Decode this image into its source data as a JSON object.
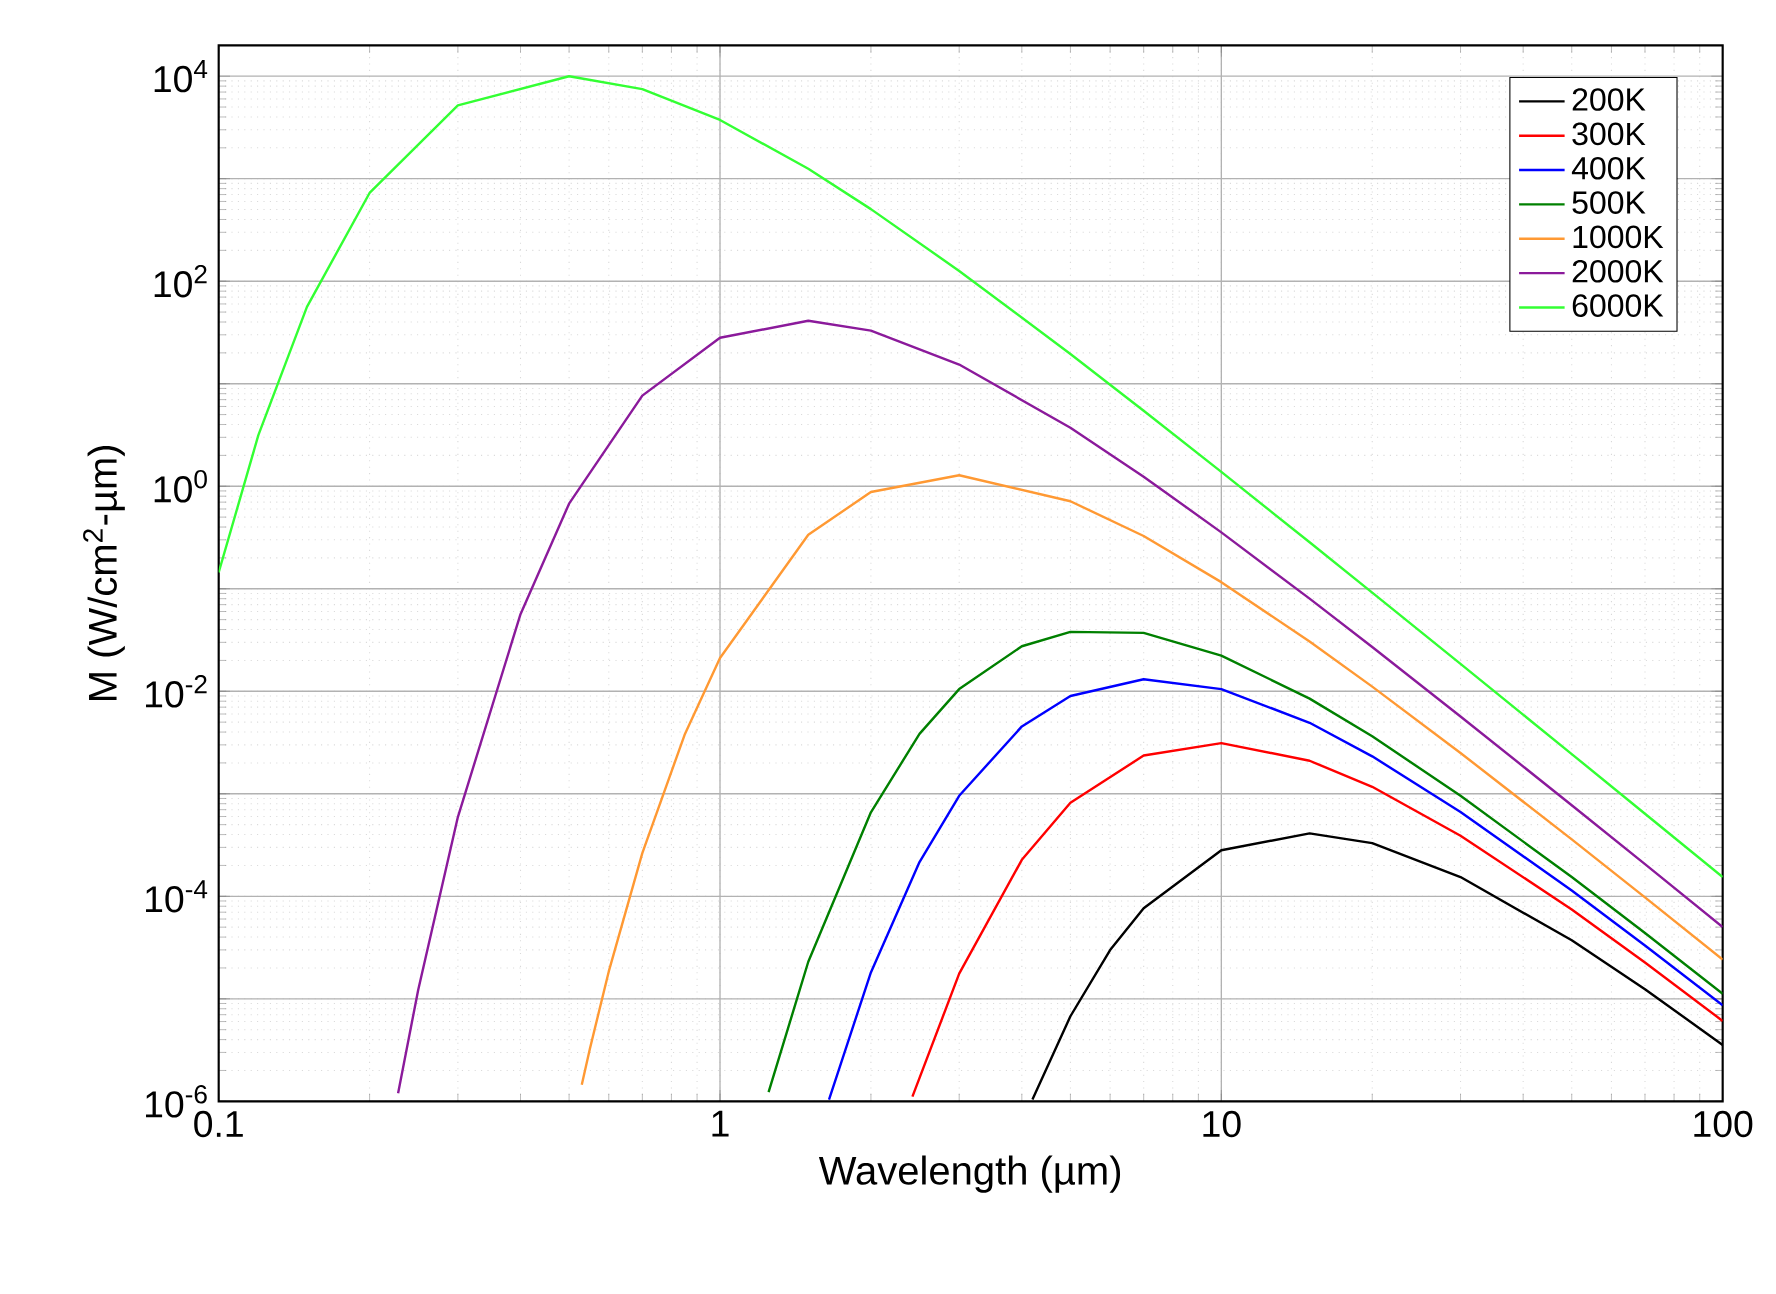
{
  "chart_data": {
    "type": "line",
    "xlabel": "Wavelength (µm)",
    "ylabel": "M (W/cm$^{2}$-µm)",
    "log": "xy",
    "grid": true,
    "legend": "top right",
    "marker": "none",
    "line_style": "solid",
    "xlim": [
      0.1,
      100
    ],
    "ylim": [
      1e-06,
      20000
    ],
    "xticks": [
      0.1,
      1,
      10,
      100
    ],
    "yticks": [
      {
        "value": 1e-06,
        "label": "10$^{-6}$"
      },
      {
        "value": 1e-05,
        "label": null
      },
      {
        "value": 0.0001,
        "label": "10$^{-4}$"
      },
      {
        "value": 0.001,
        "label": null
      },
      {
        "value": 0.01,
        "label": "10$^{-2}$"
      },
      {
        "value": 0.1,
        "label": null
      },
      {
        "value": 1,
        "label": "10$^{0}$"
      },
      {
        "value": 10,
        "label": null
      },
      {
        "value": 100,
        "label": "10$^{2}$"
      },
      {
        "value": 1000,
        "label": null
      },
      {
        "value": 10000,
        "label": "10$^{4}$"
      }
    ],
    "series": [
      {
        "name": "200K",
        "color": "#000000",
        "x": [
          4.2,
          5,
          6,
          7,
          10,
          15,
          20,
          30,
          50,
          70,
          100
        ],
        "values": [
          1.04e-06,
          6.76e-06,
          2.99e-05,
          7.66e-05,
          0.000281,
          0.000411,
          0.00033,
          0.000154,
          3.72e-05,
          1.24e-05,
          3.55e-06
        ]
      },
      {
        "name": "300K",
        "color": "#ff0000",
        "x": [
          2.42,
          3,
          4,
          5,
          7,
          10,
          15,
          20,
          30,
          50,
          70,
          100
        ],
        "values": [
          1.11e-06,
          1.76e-05,
          0.000227,
          0.000818,
          0.00236,
          0.00312,
          0.0021,
          0.00117,
          0.00039,
          7.44e-05,
          2.26e-05,
          6.08e-06
        ]
      },
      {
        "name": "400K",
        "color": "#0000ff",
        "x": [
          1.65,
          2,
          2.5,
          3,
          4,
          5,
          7,
          10,
          15,
          20,
          30,
          50,
          70,
          100
        ],
        "values": [
          1.04e-06,
          1.81e-05,
          0.000216,
          0.000956,
          0.00454,
          0.009,
          0.0131,
          0.0105,
          0.00493,
          0.00232,
          0.000665,
          0.000114,
          3.31e-05,
          8.64e-06
        ]
      },
      {
        "name": "500K",
        "color": "#008000",
        "x": [
          1.25,
          1.5,
          2,
          2.5,
          3,
          4,
          5,
          7,
          10,
          15,
          20,
          30,
          50,
          70,
          100
        ],
        "values": [
          1.23e-06,
          2.3e-05,
          0.00066,
          0.00384,
          0.0105,
          0.0275,
          0.038,
          0.0371,
          0.0223,
          0.00848,
          0.00364,
          0.000957,
          0.000154,
          4.38e-05,
          1.12e-05
        ]
      },
      {
        "name": "1000K",
        "color": "#ff9933",
        "x": [
          0.53,
          0.55,
          0.6,
          0.7,
          0.85,
          1,
          1.5,
          2,
          3,
          5,
          7,
          10,
          15,
          20,
          30,
          50,
          70,
          100
        ],
        "values": [
          1.45e-06,
          3.24e-06,
          1.85e-05,
          0.000264,
          0.00376,
          0.0211,
          0.336,
          0.879,
          1.28,
          0.714,
          0.327,
          0.116,
          0.0306,
          0.0111,
          0.0025,
          0.000359,
          9.76e-05,
          2.42e-05
        ]
      },
      {
        "name": "2000K",
        "color": "#8b1a9b",
        "x": [
          0.228,
          0.25,
          0.3,
          0.4,
          0.5,
          0.7,
          1,
          1.5,
          2,
          3,
          5,
          7,
          10,
          15,
          20,
          30,
          50,
          70,
          100
        ],
        "values": [
          1.2e-06,
          1.22e-05,
          0.000593,
          0.0565,
          0.676,
          7.66,
          28.1,
          41.1,
          33.0,
          15.4,
          3.72,
          1.24,
          0.355,
          0.0801,
          0.027,
          0.00568,
          0.000774,
          0.000206,
          5.02e-05
        ]
      },
      {
        "name": "6000K",
        "color": "#33ff33",
        "x": [
          0.1,
          0.12,
          0.15,
          0.2,
          0.3,
          0.5,
          0.7,
          1,
          1.5,
          2,
          3,
          5,
          7,
          10,
          15,
          20,
          30,
          50,
          70,
          100
        ],
        "values": [
          0.144,
          3.15,
          56.2,
          726,
          5200,
          9980,
          7480,
          3740,
          1250,
          505,
          126,
          19.5,
          5.45,
          1.38,
          0.284,
          0.0918,
          0.0185,
          0.00244,
          0.000639,
          0.000154
        ]
      }
    ]
  }
}
